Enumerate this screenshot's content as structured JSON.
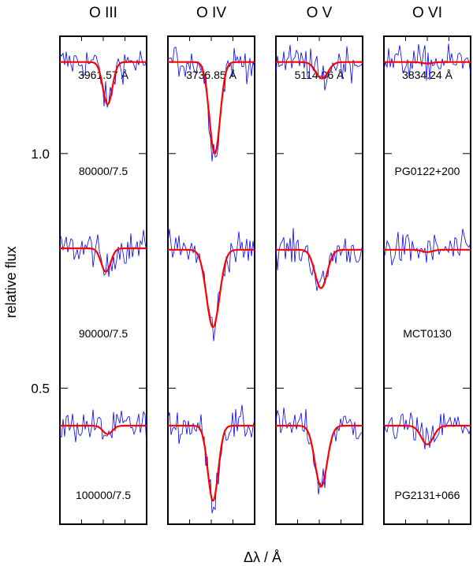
{
  "figure": {
    "ylabel": "relative flux",
    "xlabel": "Δλ / Å"
  },
  "chart_data": {
    "type": "line",
    "title": "",
    "xlabel": "Δλ / Å",
    "ylabel": "relative flux",
    "ylim": [
      0.21,
      1.25
    ],
    "xlim": [
      -5,
      5
    ],
    "y_ticks": [
      0.5,
      1.0
    ],
    "y_tick_labels": [
      "0.5",
      "1.0"
    ],
    "model_labels": [
      "80000/7.5",
      "90000/7.5",
      "100000/7.5"
    ],
    "star_labels": [
      "PG0122+200",
      "MCT0130",
      "PG2131+066"
    ],
    "model_color": "#ff0000",
    "observation_color": "#0000ff",
    "panels": [
      {
        "ion": "O III",
        "wavelength": "3961.57 Å",
        "series": [
          {
            "star": "PG0122+200",
            "model": "80000/7.5",
            "continuum": 1.195,
            "depth": 0.09,
            "center": 0.5,
            "width": 0.55
          },
          {
            "star": "MCT0130",
            "model": "90000/7.5",
            "continuum": 0.798,
            "depth": 0.05,
            "center": 0.3,
            "width": 0.55
          },
          {
            "star": "PG2131+066",
            "model": "100000/7.5",
            "continuum": 0.42,
            "depth": 0.018,
            "center": 0.5,
            "width": 0.55
          }
        ]
      },
      {
        "ion": "O IV",
        "wavelength": "3736.85 Å",
        "series": [
          {
            "star": "PG0122+200",
            "model": "80000/7.5",
            "continuum": 1.195,
            "depth": 0.195,
            "center": 0.4,
            "width": 0.62
          },
          {
            "star": "MCT0130",
            "model": "90000/7.5",
            "continuum": 0.795,
            "depth": 0.165,
            "center": 0.2,
            "width": 0.75
          },
          {
            "star": "PG2131+066",
            "model": "100000/7.5",
            "continuum": 0.42,
            "depth": 0.16,
            "center": 0.2,
            "width": 0.6
          }
        ]
      },
      {
        "ion": "O V",
        "wavelength": "5114.06 Å",
        "series": [
          {
            "star": "PG0122+200",
            "model": "80000/7.5",
            "continuum": 1.195,
            "depth": 0.035,
            "center": 0.3,
            "width": 0.7
          },
          {
            "star": "MCT0130",
            "model": "90000/7.5",
            "continuum": 0.795,
            "depth": 0.082,
            "center": 0.2,
            "width": 0.7
          },
          {
            "star": "PG2131+066",
            "model": "100000/7.5",
            "continuum": 0.42,
            "depth": 0.13,
            "center": 0.2,
            "width": 0.7
          }
        ]
      },
      {
        "ion": "O VI",
        "wavelength": "3834.24 Å",
        "series": [
          {
            "star": "PG0122+200",
            "model": "80000/7.5",
            "continuum": 1.195,
            "depth": 0.003,
            "center": 0.0,
            "width": 0.6
          },
          {
            "star": "MCT0130",
            "model": "90000/7.5",
            "continuum": 0.795,
            "depth": 0.005,
            "center": 0.0,
            "width": 0.6
          },
          {
            "star": "PG2131+066",
            "model": "100000/7.5",
            "continuum": 0.42,
            "depth": 0.04,
            "center": 0.0,
            "width": 0.7
          }
        ]
      }
    ]
  }
}
